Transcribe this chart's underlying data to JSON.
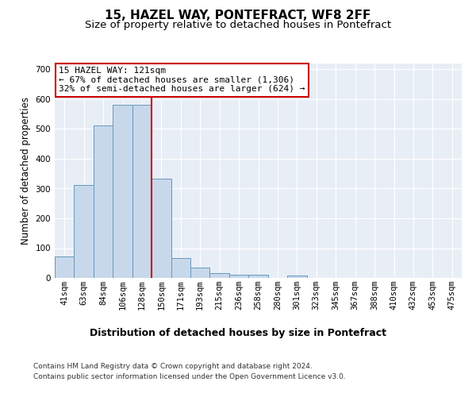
{
  "title": "15, HAZEL WAY, PONTEFRACT, WF8 2FF",
  "subtitle": "Size of property relative to detached houses in Pontefract",
  "xlabel": "Distribution of detached houses by size in Pontefract",
  "ylabel": "Number of detached properties",
  "categories": [
    "41sqm",
    "63sqm",
    "84sqm",
    "106sqm",
    "128sqm",
    "150sqm",
    "171sqm",
    "193sqm",
    "215sqm",
    "236sqm",
    "258sqm",
    "280sqm",
    "301sqm",
    "323sqm",
    "345sqm",
    "367sqm",
    "388sqm",
    "410sqm",
    "432sqm",
    "453sqm",
    "475sqm"
  ],
  "values": [
    72,
    312,
    512,
    580,
    580,
    332,
    68,
    36,
    15,
    11,
    10,
    0,
    7,
    0,
    0,
    0,
    0,
    0,
    0,
    0,
    0
  ],
  "bar_color": "#c8d8eb",
  "bar_edge_color": "#6699bb",
  "vline_x_index": 4.5,
  "vline_color": "#cc0000",
  "annotation_text": "15 HAZEL WAY: 121sqm\n← 67% of detached houses are smaller (1,306)\n32% of semi-detached houses are larger (624) →",
  "annotation_box_facecolor": "#ffffff",
  "annotation_box_edgecolor": "#cc0000",
  "ylim": [
    0,
    720
  ],
  "yticks": [
    0,
    100,
    200,
    300,
    400,
    500,
    600,
    700
  ],
  "fig_facecolor": "#ffffff",
  "axes_facecolor": "#e8eef6",
  "grid_color": "#ffffff",
  "title_fontsize": 11,
  "subtitle_fontsize": 9.5,
  "xlabel_fontsize": 9,
  "ylabel_fontsize": 8.5,
  "tick_fontsize": 7.5,
  "ann_fontsize": 8,
  "footer_line1": "Contains HM Land Registry data © Crown copyright and database right 2024.",
  "footer_line2": "Contains public sector information licensed under the Open Government Licence v3.0.",
  "footer_fontsize": 6.5
}
